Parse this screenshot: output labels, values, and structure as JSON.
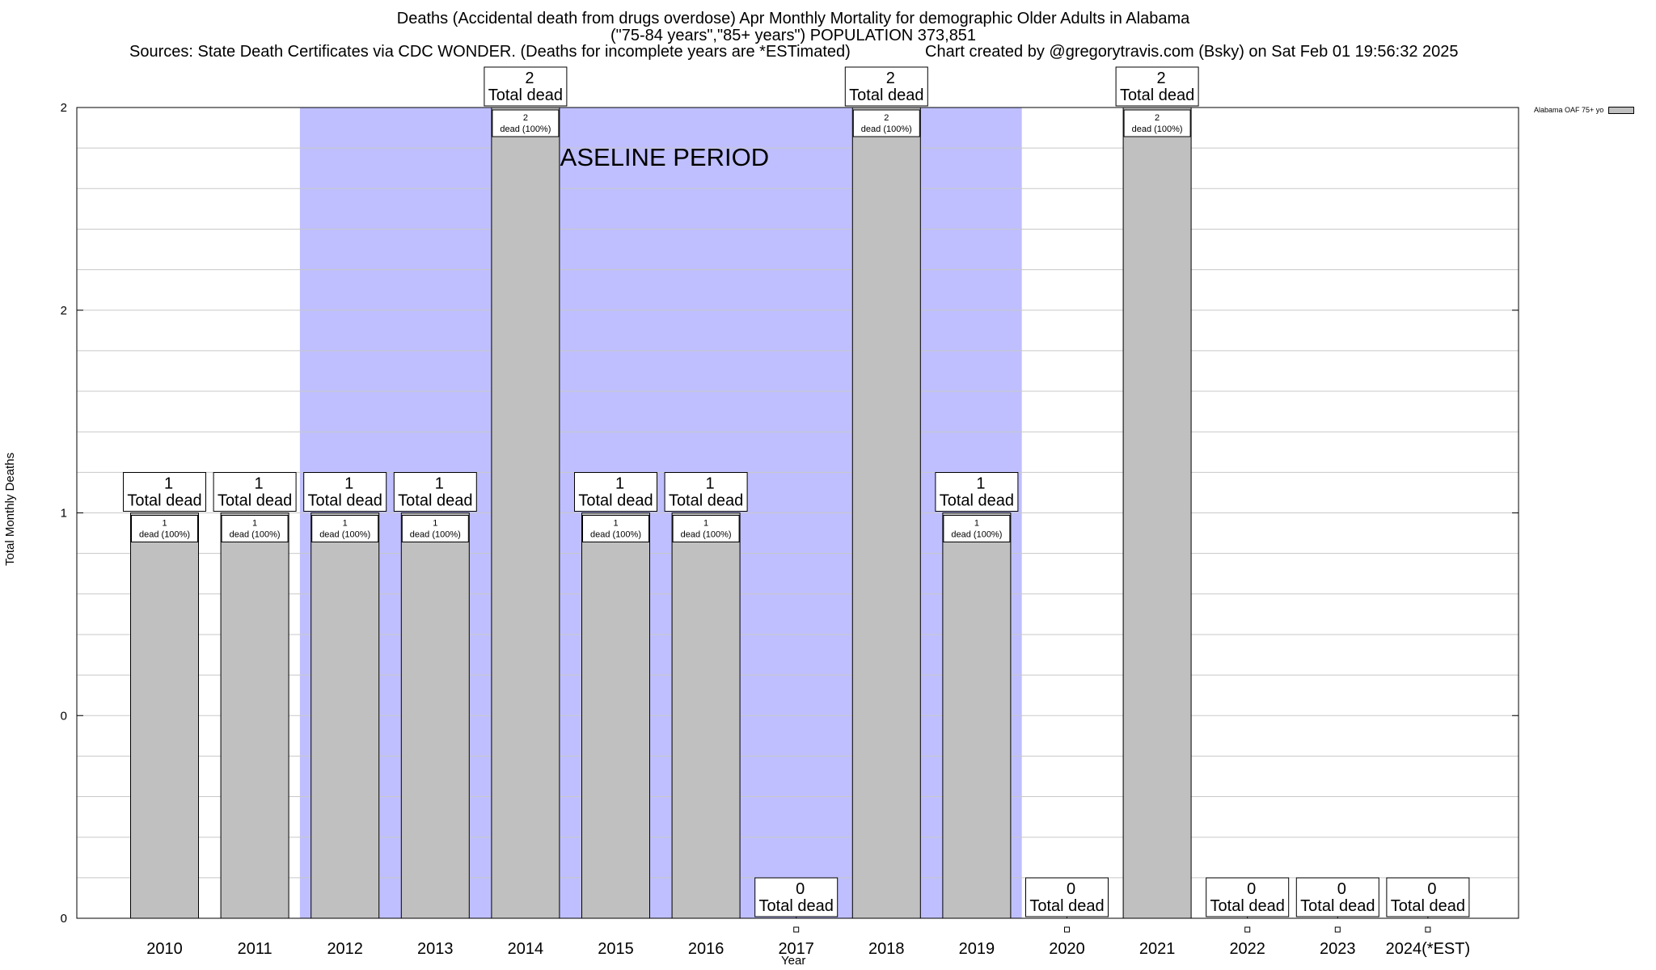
{
  "titles": {
    "line1": "Deaths (Accidental death from drugs overdose) Apr Monthly Mortality for demographic Older Adults in Alabama",
    "line2": "(\"75-84 years\",\"85+ years\") POPULATION 373,851",
    "line3": "Sources: State Death Certificates via CDC WONDER. (Deaths for incomplete years are *ESTimated)",
    "credit": "Chart created by @gregorytravis.com (Bsky) on Sat Feb 01 19:56:32 2025"
  },
  "colors": {
    "bar_fill": "#c0c0c0",
    "baseline_fill": "#bfbfff",
    "grid": "#c8c8c8"
  },
  "chart_data": {
    "type": "bar",
    "title": "Deaths (Accidental death from drugs overdose) Apr Monthly Mortality for demographic Older Adults in Alabama",
    "xlabel": "Year",
    "ylabel": "Total Monthly Deaths",
    "ylim": [
      0,
      2
    ],
    "yticks": [
      "0",
      "0",
      "1",
      "2",
      "2"
    ],
    "grid": true,
    "legend_position": "top-right",
    "categories": [
      "2010",
      "2011",
      "2012",
      "2013",
      "2014",
      "2015",
      "2016",
      "2017",
      "2018",
      "2019",
      "2020",
      "2021",
      "2022",
      "2023",
      "2024(*EST)"
    ],
    "series": [
      {
        "name": "Alabama OAF 75+ yo",
        "values": [
          1,
          1,
          1,
          1,
          2,
          1,
          1,
          0,
          2,
          1,
          0,
          2,
          0,
          0,
          0
        ]
      }
    ],
    "total_labels": [
      "1",
      "1",
      "1",
      "1",
      "2",
      "1",
      "1",
      "0",
      "2",
      "1",
      "0",
      "2",
      "0",
      "0",
      "0"
    ],
    "total_suffix": "Total dead",
    "inner_labels": [
      "1",
      "1",
      "1",
      "1",
      "2",
      "1",
      "1",
      "",
      "2",
      "1",
      "",
      "2",
      "",
      "",
      ""
    ],
    "inner_suffix": "dead (100%)",
    "annotation": {
      "text": "BASELINE PERIOD",
      "start_category": "2012",
      "end_category": "2019"
    }
  }
}
